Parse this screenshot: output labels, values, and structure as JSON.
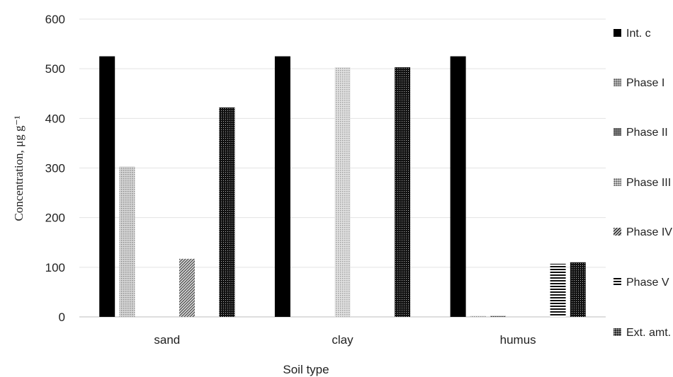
{
  "chart_data": {
    "type": "bar",
    "xlabel": "Soil type",
    "ylabel": "Concentration,  μg g⁻¹",
    "ylim": [
      0,
      600
    ],
    "yticks": [
      0,
      100,
      200,
      300,
      400,
      500,
      600
    ],
    "grid": true,
    "legend_position": "right",
    "categories": [
      "sand",
      "clay",
      "humus"
    ],
    "series": [
      {
        "name": "Int. c",
        "values": [
          525,
          525,
          525
        ],
        "color": "#000000",
        "pattern": "solid"
      },
      {
        "name": "Phase I",
        "values": [
          303,
          0,
          2
        ],
        "color": "#b8b8b8",
        "pattern": "dots"
      },
      {
        "name": "Phase II",
        "values": [
          0,
          0,
          2
        ],
        "color": "#666666",
        "pattern": "dots"
      },
      {
        "name": "Phase III",
        "values": [
          0,
          503,
          0
        ],
        "color": "#cfcfcf",
        "pattern": "dots"
      },
      {
        "name": "Phase IV",
        "values": [
          117,
          0,
          0
        ],
        "color": "#808080",
        "pattern": "diagonal"
      },
      {
        "name": "Phase V",
        "values": [
          0,
          0,
          107
        ],
        "color": "#000000",
        "pattern": "horizontal"
      },
      {
        "name": "Ext. amt.",
        "values": [
          422,
          503,
          110
        ],
        "color": "#2a2a2a",
        "pattern": "dots"
      }
    ]
  }
}
